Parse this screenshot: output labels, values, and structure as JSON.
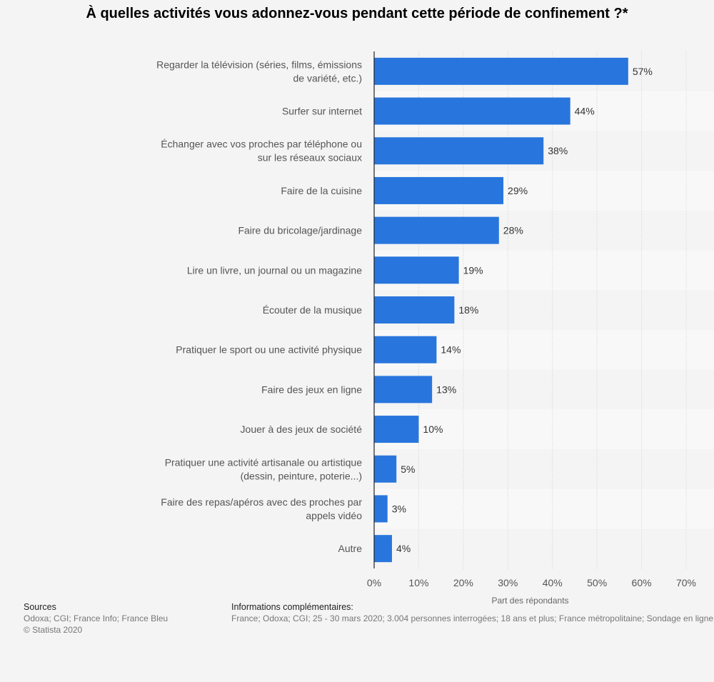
{
  "chart_data": {
    "type": "bar",
    "orientation": "horizontal",
    "title": "À quelles activités vous adonnez-vous pendant cette période de confinement ?*",
    "categories": [
      [
        "Regarder la télévision (séries, films, émissions",
        "de variété, etc.)"
      ],
      [
        "Surfer sur internet"
      ],
      [
        "Échanger avec vos proches par téléphone ou",
        "sur les réseaux sociaux"
      ],
      [
        "Faire de la cuisine"
      ],
      [
        "Faire du bricolage/jardinage"
      ],
      [
        "Lire un livre, un journal ou un magazine"
      ],
      [
        "Écouter de la musique"
      ],
      [
        "Pratiquer le sport ou une activité physique"
      ],
      [
        "Faire des jeux en ligne"
      ],
      [
        "Jouer à des jeux de société"
      ],
      [
        "Pratiquer une activité artisanale ou artistique",
        "(dessin, peinture, poterie...)"
      ],
      [
        "Faire des repas/apéros avec des proches par",
        "appels vidéo"
      ],
      [
        "Autre"
      ]
    ],
    "values": [
      57,
      44,
      38,
      29,
      28,
      19,
      18,
      14,
      13,
      10,
      5,
      3,
      4
    ],
    "value_labels": [
      "57%",
      "44%",
      "38%",
      "29%",
      "28%",
      "19%",
      "18%",
      "14%",
      "13%",
      "10%",
      "5%",
      "3%",
      "4%"
    ],
    "xlim": [
      0,
      70
    ],
    "ticks": [
      0,
      10,
      20,
      30,
      40,
      50,
      60,
      70
    ],
    "tick_labels": [
      "0%",
      "10%",
      "20%",
      "30%",
      "40%",
      "50%",
      "60%",
      "70%"
    ],
    "xlabel": "Part des répondants",
    "grid": true,
    "bar_color": "#2876dd",
    "band_color": "#f8f8f8"
  },
  "footer": {
    "sources_title": "Sources",
    "sources_lines": [
      "Odoxa; CGI; France Info; France Bleu",
      "© Statista 2020"
    ],
    "info_title": "Informations complémentaires:",
    "info_text": "France; Odoxa; CGI; 25 - 30 mars 2020; 3.004 personnes interrogées; 18 ans et plus; France métropolitaine; Sondage en ligne"
  }
}
